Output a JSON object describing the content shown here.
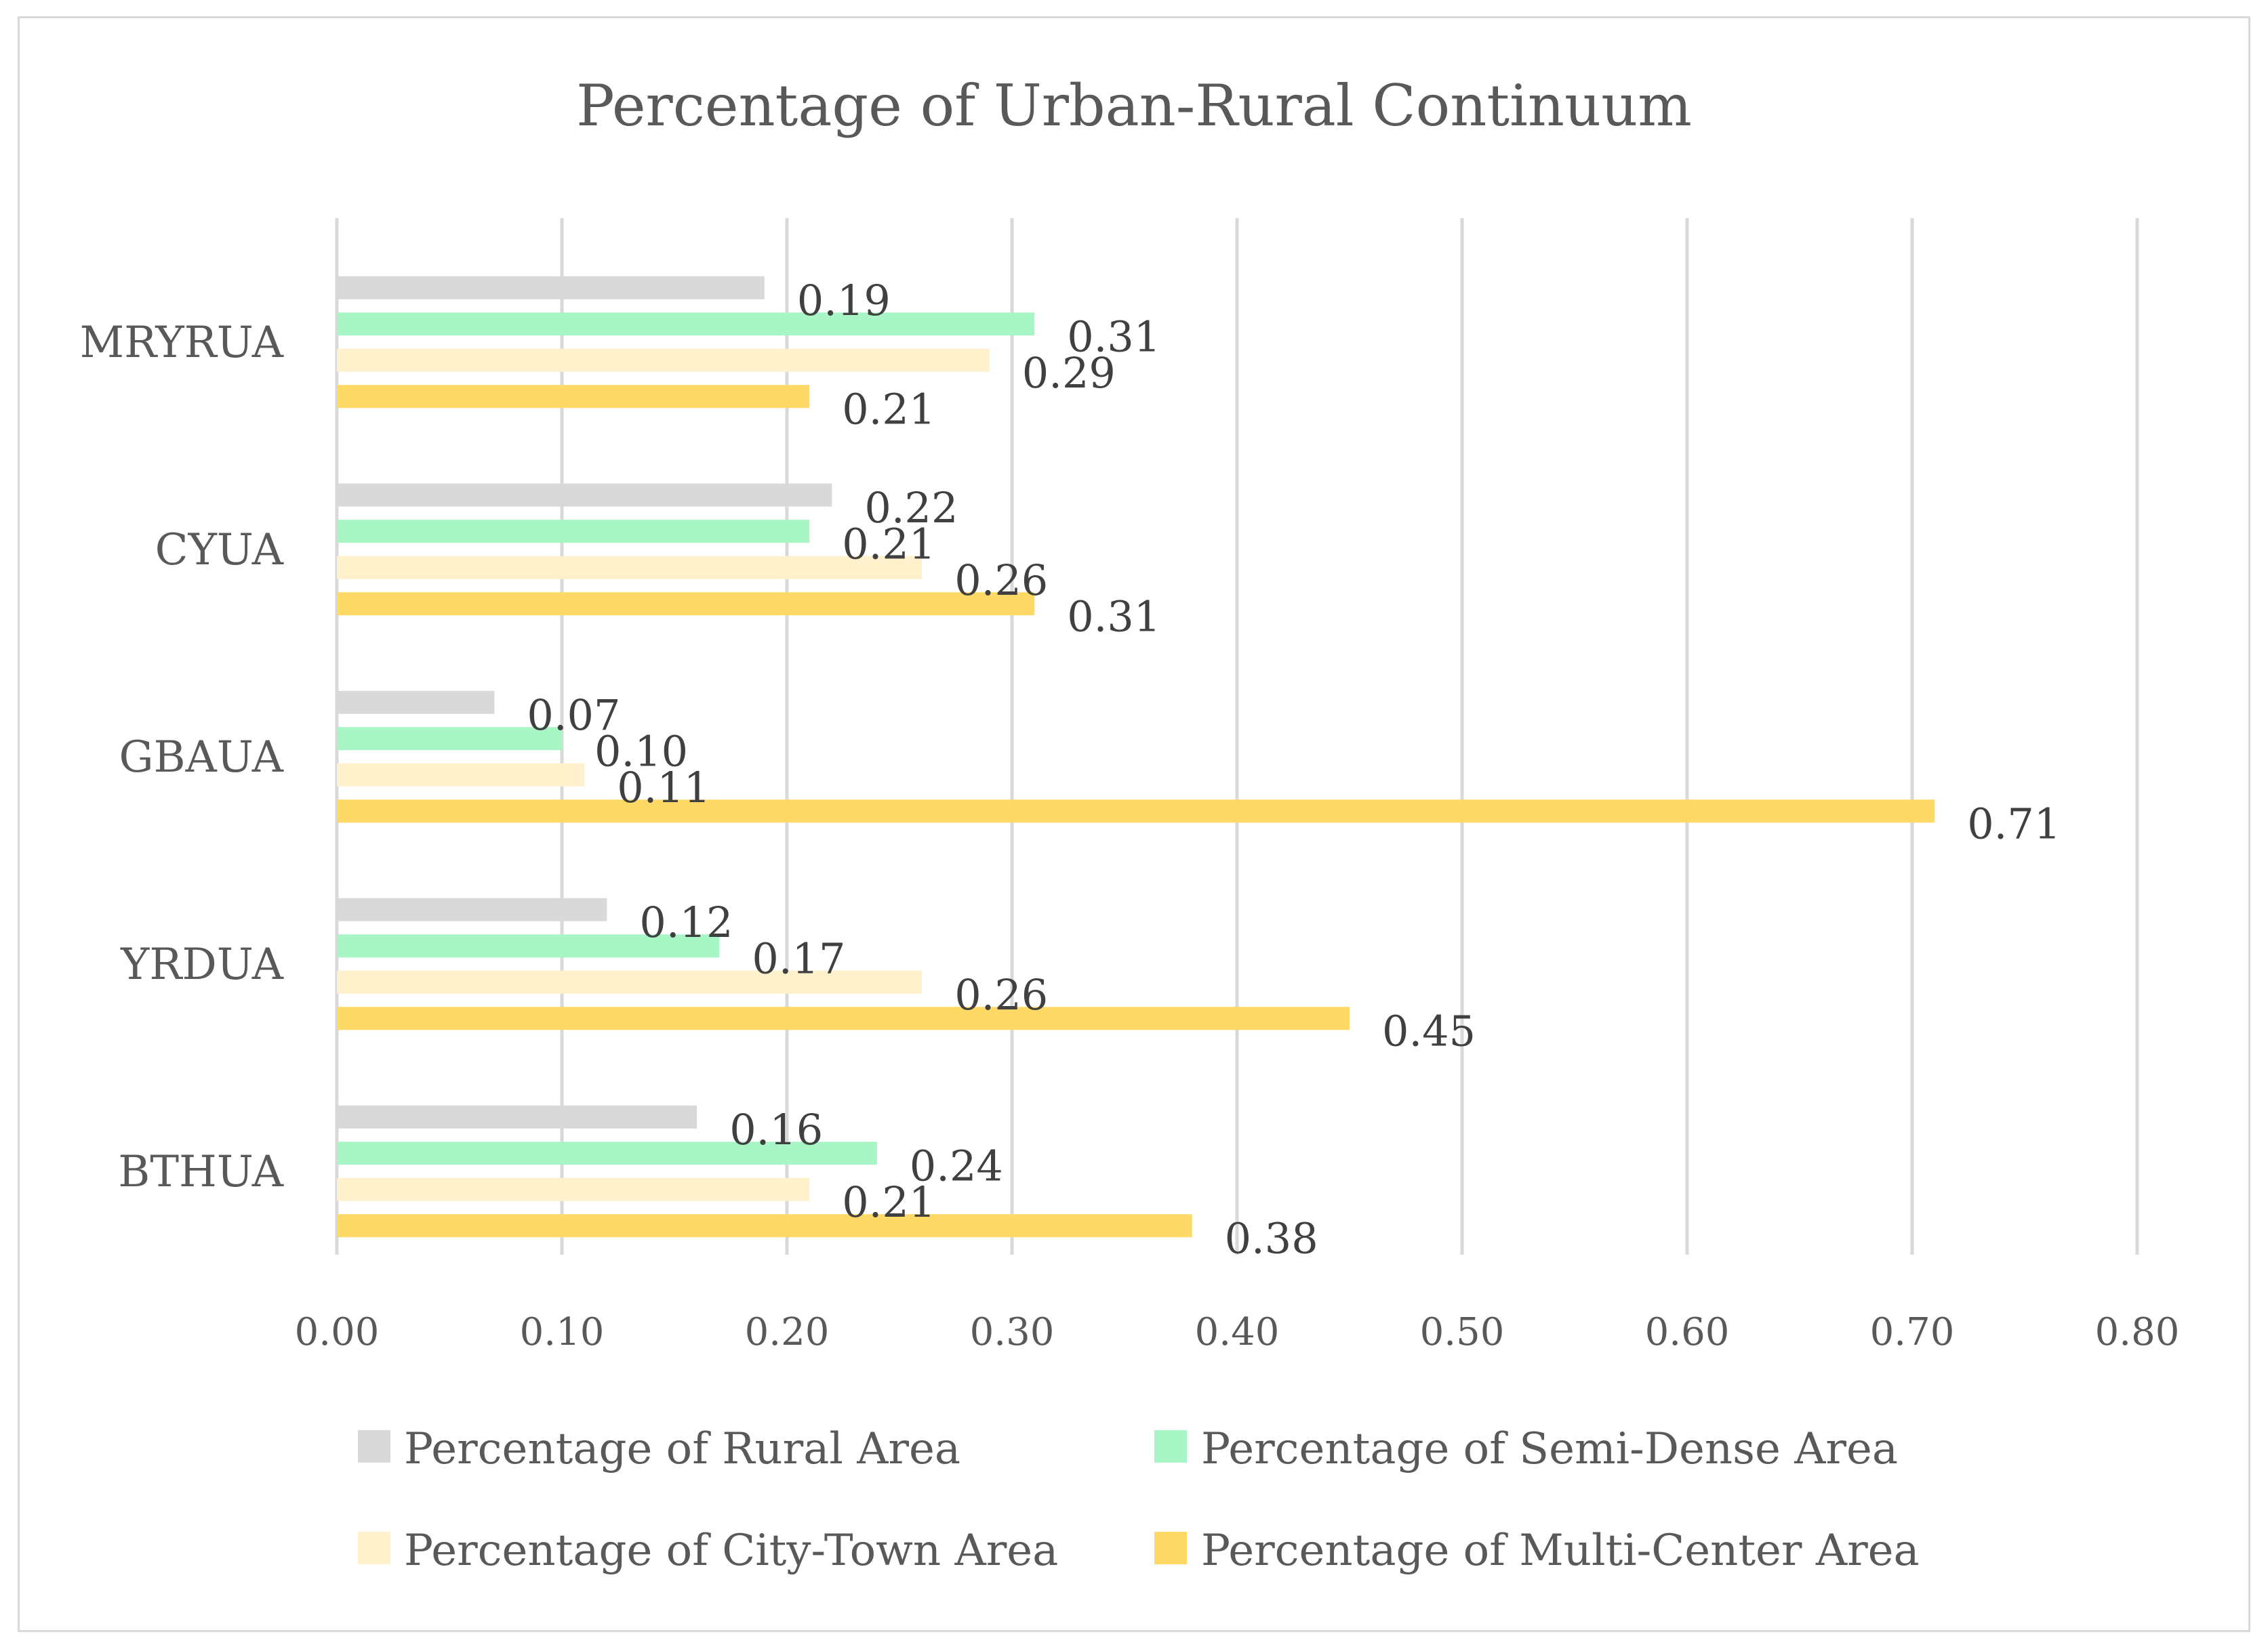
{
  "chart_data": {
    "type": "bar",
    "orientation": "horizontal",
    "title": "Percentage of Urban-Rural Continuum",
    "categories": [
      "MRYRUA",
      "CYUA",
      "GBAUA",
      "YRDUA",
      "BTHUA"
    ],
    "series": [
      {
        "name": "Percentage of Rural Area",
        "color": "#d9d9d9",
        "values": [
          0.19,
          0.22,
          0.07,
          0.12,
          0.16
        ],
        "labels": [
          "0.19",
          "0.22",
          "0.07",
          "0.12",
          "0.16"
        ]
      },
      {
        "name": "Percentage of Semi-Dense Area",
        "color": "#a8f5c6",
        "values": [
          0.31,
          0.21,
          0.1,
          0.17,
          0.24
        ],
        "labels": [
          "0.31",
          "0.21",
          "0.10",
          "0.17",
          "0.24"
        ]
      },
      {
        "name": "Percentage of City-Town Area",
        "color": "#fff1cc",
        "values": [
          0.29,
          0.26,
          0.11,
          0.26,
          0.21
        ],
        "labels": [
          "0.29",
          "0.26",
          "0.11",
          "0.26",
          "0.21"
        ]
      },
      {
        "name": "Percentage of Multi-Center Area",
        "color": "#ffd966",
        "values": [
          0.21,
          0.31,
          0.71,
          0.45,
          0.38
        ],
        "labels": [
          "0.21",
          "0.31",
          "0.71",
          "0.45",
          "0.38"
        ]
      }
    ],
    "xlim": [
      0,
      0.8
    ],
    "xticks": [
      "0.00",
      "0.10",
      "0.20",
      "0.30",
      "0.40",
      "0.50",
      "0.60",
      "0.70",
      "0.80"
    ],
    "xlabel": "",
    "ylabel": "",
    "grid": true,
    "legend_position": "bottom"
  }
}
